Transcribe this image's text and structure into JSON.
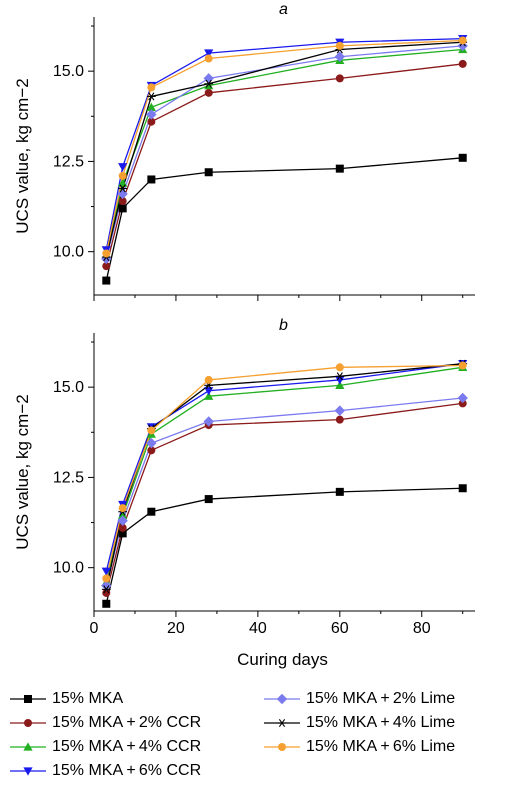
{
  "chart_data": [
    {
      "type": "line",
      "title": "a",
      "xlabel": "",
      "ylabel": "UCS value, kg cm−2",
      "xlim": [
        0,
        93
      ],
      "ylim": [
        8.8,
        16.5
      ],
      "yticks": [
        10.0,
        12.5,
        15.0
      ],
      "yticklabels": [
        "10.0",
        "12.5",
        "15.0"
      ],
      "xticks": [
        0,
        20,
        40,
        60,
        80
      ],
      "xticklabels": [],
      "grid": false,
      "series": [
        {
          "name": "15% MKA",
          "x": [
            3,
            7,
            14,
            28,
            60,
            90
          ],
          "y": [
            9.2,
            11.2,
            12.0,
            12.2,
            12.3,
            12.6
          ]
        },
        {
          "name": "15% MKA + 2% CCR",
          "x": [
            3,
            7,
            14,
            28,
            60,
            90
          ],
          "y": [
            9.6,
            11.4,
            13.6,
            14.4,
            14.8,
            15.2
          ]
        },
        {
          "name": "15% MKA + 4% CCR",
          "x": [
            3,
            7,
            14,
            28,
            60,
            90
          ],
          "y": [
            9.9,
            11.9,
            14.0,
            14.6,
            15.3,
            15.6
          ]
        },
        {
          "name": "15% MKA + 6% CCR",
          "x": [
            3,
            7,
            14,
            28,
            60,
            90
          ],
          "y": [
            10.05,
            12.35,
            14.6,
            15.5,
            15.8,
            15.9
          ]
        },
        {
          "name": "15% MKA + 2% Lime",
          "x": [
            3,
            7,
            14,
            28,
            60,
            90
          ],
          "y": [
            9.8,
            11.6,
            13.8,
            14.8,
            15.4,
            15.7
          ]
        },
        {
          "name": "15% MKA + 4% Lime",
          "x": [
            3,
            7,
            14,
            28,
            60,
            90
          ],
          "y": [
            9.85,
            11.75,
            14.3,
            14.65,
            15.6,
            15.8
          ]
        },
        {
          "name": "15% MKA + 6% Lime",
          "x": [
            3,
            7,
            14,
            28,
            60,
            90
          ],
          "y": [
            9.95,
            12.1,
            14.55,
            15.35,
            15.7,
            15.85
          ]
        }
      ]
    },
    {
      "type": "line",
      "title": "b",
      "xlabel": "Curing days",
      "ylabel": "UCS value, kg cm−2",
      "xlim": [
        0,
        93
      ],
      "ylim": [
        8.8,
        16.5
      ],
      "yticks": [
        10.0,
        12.5,
        15.0
      ],
      "yticklabels": [
        "10.0",
        "12.5",
        "15.0"
      ],
      "xticks": [
        0,
        20,
        40,
        60,
        80
      ],
      "xticklabels": [
        "0",
        "20",
        "40",
        "60",
        "80"
      ],
      "grid": false,
      "series": [
        {
          "name": "15% MKA",
          "x": [
            3,
            7,
            14,
            28,
            60,
            90
          ],
          "y": [
            9.0,
            10.95,
            11.55,
            11.9,
            12.1,
            12.2
          ]
        },
        {
          "name": "15% MKA + 2% CCR",
          "x": [
            3,
            7,
            14,
            28,
            60,
            90
          ],
          "y": [
            9.3,
            11.1,
            13.25,
            13.95,
            14.1,
            14.55
          ]
        },
        {
          "name": "15% MKA + 4% CCR",
          "x": [
            3,
            7,
            14,
            28,
            60,
            90
          ],
          "y": [
            9.6,
            11.45,
            13.7,
            14.75,
            15.05,
            15.55
          ]
        },
        {
          "name": "15% MKA + 6% CCR",
          "x": [
            3,
            7,
            14,
            28,
            60,
            90
          ],
          "y": [
            9.9,
            11.75,
            13.9,
            14.9,
            15.2,
            15.65
          ]
        },
        {
          "name": "15% MKA + 2% Lime",
          "x": [
            3,
            7,
            14,
            28,
            60,
            90
          ],
          "y": [
            9.5,
            11.3,
            13.45,
            14.05,
            14.35,
            14.7
          ]
        },
        {
          "name": "15% MKA + 4% Lime",
          "x": [
            3,
            7,
            14,
            28,
            60,
            90
          ],
          "y": [
            9.4,
            11.55,
            13.85,
            15.05,
            15.3,
            15.65
          ]
        },
        {
          "name": "15% MKA + 6% Lime",
          "x": [
            3,
            7,
            14,
            28,
            60,
            90
          ],
          "y": [
            9.7,
            11.65,
            13.8,
            15.2,
            15.55,
            15.6
          ]
        }
      ]
    }
  ],
  "series_styles": [
    {
      "color": "#000000",
      "marker": "square"
    },
    {
      "color": "#8b1a1a",
      "marker": "circle"
    },
    {
      "color": "#22b022",
      "marker": "triangle-up"
    },
    {
      "color": "#1a1aee",
      "marker": "triangle-down"
    },
    {
      "color": "#7b7bef",
      "marker": "diamond"
    },
    {
      "color": "#000000",
      "marker": "asterisk"
    },
    {
      "color": "#f5a030",
      "marker": "circle"
    }
  ],
  "legend": {
    "placement": "bottom",
    "items": [
      "15% MKA",
      "15% MKA + 2% CCR",
      "15% MKA + 4% CCR",
      "15% MKA + 6% CCR",
      "15% MKA + 2% Lime",
      "15% MKA + 4% Lime",
      "15% MKA + 6% Lime"
    ]
  }
}
